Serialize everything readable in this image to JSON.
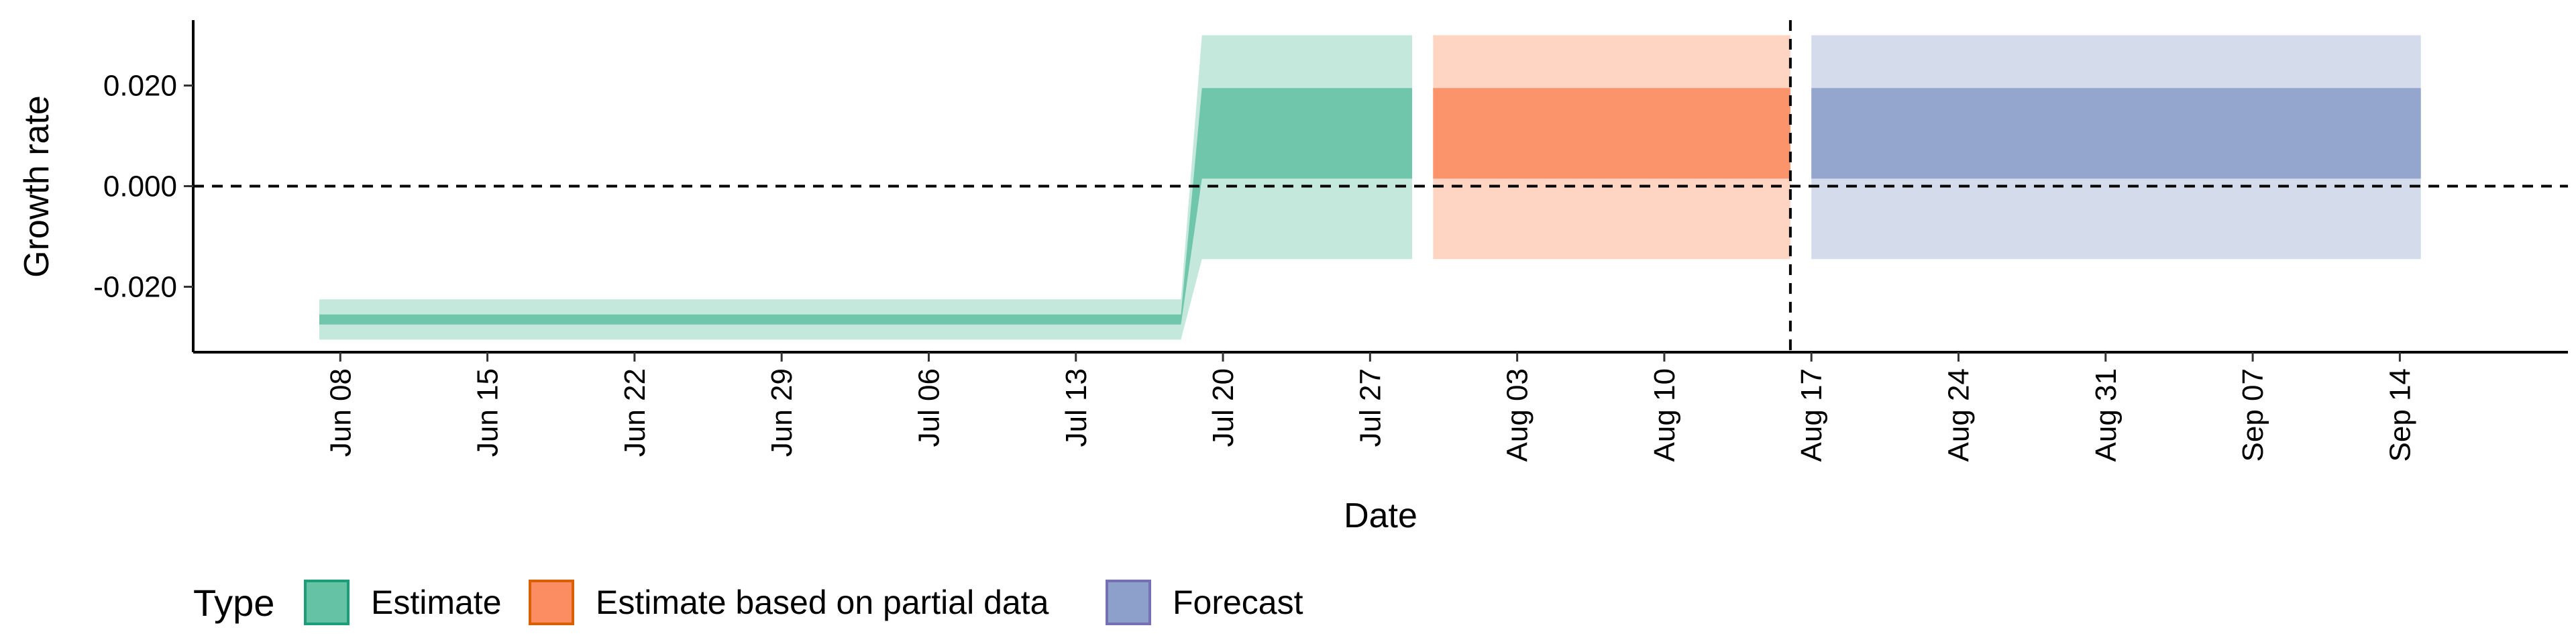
{
  "chart_data": {
    "type": "area",
    "xlabel": "Date",
    "ylabel": "Growth rate",
    "x_range": [
      "2020-06-01",
      "2020-09-22"
    ],
    "y_range": [
      -0.033,
      0.033
    ],
    "x_ticks": [
      {
        "date": "2020-06-08",
        "label": "Jun 08"
      },
      {
        "date": "2020-06-15",
        "label": "Jun 15"
      },
      {
        "date": "2020-06-22",
        "label": "Jun 22"
      },
      {
        "date": "2020-06-29",
        "label": "Jun 29"
      },
      {
        "date": "2020-07-06",
        "label": "Jul 06"
      },
      {
        "date": "2020-07-13",
        "label": "Jul 13"
      },
      {
        "date": "2020-07-20",
        "label": "Jul 20"
      },
      {
        "date": "2020-07-27",
        "label": "Jul 27"
      },
      {
        "date": "2020-08-03",
        "label": "Aug 03"
      },
      {
        "date": "2020-08-10",
        "label": "Aug 10"
      },
      {
        "date": "2020-08-17",
        "label": "Aug 17"
      },
      {
        "date": "2020-08-24",
        "label": "Aug 24"
      },
      {
        "date": "2020-08-31",
        "label": "Aug 31"
      },
      {
        "date": "2020-09-07",
        "label": "Sep 07"
      },
      {
        "date": "2020-09-14",
        "label": "Sep 14"
      }
    ],
    "y_ticks": [
      {
        "value": -0.02,
        "label": "-0.020"
      },
      {
        "value": 0.0,
        "label": "0.000"
      },
      {
        "value": 0.02,
        "label": "0.020"
      }
    ],
    "reference_lines": {
      "horizontal_y": 0.0,
      "vertical_date": "2020-08-16"
    },
    "legend": {
      "title": "Type",
      "placement": "bottom-left",
      "items": [
        {
          "label": "Estimate",
          "fill": "#66c2a5",
          "stroke": "#1b9e77"
        },
        {
          "label": "Estimate based on partial data",
          "fill": "#fc8d62",
          "stroke": "#d95f02"
        },
        {
          "label": "Forecast",
          "fill": "#8da0cb",
          "stroke": "#7570b3"
        }
      ]
    },
    "series": [
      {
        "type_index": 0,
        "points": [
          {
            "x": "2020-06-07",
            "lower90": -0.0305,
            "upper90": -0.0225,
            "lower50": -0.0275,
            "upper50": -0.0255
          },
          {
            "x": "2020-07-18",
            "lower90": -0.0305,
            "upper90": -0.0225,
            "lower50": -0.0275,
            "upper50": -0.0255
          },
          {
            "x": "2020-07-19",
            "lower90": -0.0145,
            "upper90": 0.03,
            "lower50": 0.0015,
            "upper50": 0.0195
          },
          {
            "x": "2020-07-29",
            "lower90": -0.0145,
            "upper90": 0.03,
            "lower50": 0.0015,
            "upper50": 0.0195
          }
        ]
      },
      {
        "type_index": 1,
        "points": [
          {
            "x": "2020-07-30",
            "lower90": -0.0145,
            "upper90": 0.03,
            "lower50": 0.0015,
            "upper50": 0.0195
          },
          {
            "x": "2020-08-16",
            "lower90": -0.0145,
            "upper90": 0.03,
            "lower50": 0.0015,
            "upper50": 0.0195
          }
        ]
      },
      {
        "type_index": 2,
        "points": [
          {
            "x": "2020-08-17",
            "lower90": -0.0145,
            "upper90": 0.03,
            "lower50": 0.0015,
            "upper50": 0.0195
          },
          {
            "x": "2020-09-15",
            "lower90": -0.0145,
            "upper90": 0.03,
            "lower50": 0.0015,
            "upper50": 0.0195
          }
        ]
      }
    ]
  }
}
